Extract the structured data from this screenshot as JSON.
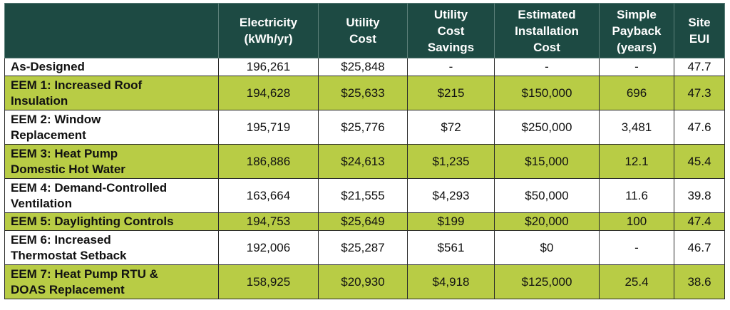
{
  "headers": [
    "",
    "Electricity\n(kWh/yr)",
    "Utility\nCost",
    "Utility\nCost\nSavings",
    "Estimated\nInstallation\nCost",
    "Simple\nPayback\n(years)",
    "Site\nEUI"
  ],
  "rows": [
    {
      "label": "As-Designed",
      "electricity": "196,261",
      "utility_cost": "$25,848",
      "savings": "-",
      "install_cost": "-",
      "payback": "-",
      "eui": "47.7",
      "style": "white"
    },
    {
      "label": "EEM 1: Increased Roof\nInsulation",
      "electricity": "194,628",
      "utility_cost": "$25,633",
      "savings": "$215",
      "install_cost": "$150,000",
      "payback": "696",
      "eui": "47.3",
      "style": "green"
    },
    {
      "label": "EEM 2: Window\nReplacement",
      "electricity": "195,719",
      "utility_cost": "$25,776",
      "savings": "$72",
      "install_cost": "$250,000",
      "payback": "3,481",
      "eui": "47.6",
      "style": "white"
    },
    {
      "label": "EEM 3: Heat Pump\nDomestic Hot Water",
      "electricity": "186,886",
      "utility_cost": "$24,613",
      "savings": "$1,235",
      "install_cost": "$15,000",
      "payback": "12.1",
      "eui": "45.4",
      "style": "green"
    },
    {
      "label": "EEM 4: Demand-Controlled\nVentilation",
      "electricity": "163,664",
      "utility_cost": "$21,555",
      "savings": "$4,293",
      "install_cost": "$50,000",
      "payback": "11.6",
      "eui": "39.8",
      "style": "white"
    },
    {
      "label": "EEM 5: Daylighting Controls",
      "electricity": "194,753",
      "utility_cost": "$25,649",
      "savings": "$199",
      "install_cost": "$20,000",
      "payback": "100",
      "eui": "47.4",
      "style": "green"
    },
    {
      "label": "EEM 6: Increased\nThermostat Setback",
      "electricity": "192,006",
      "utility_cost": "$25,287",
      "savings": "$561",
      "install_cost": "$0",
      "payback": "-",
      "eui": "46.7",
      "style": "white"
    },
    {
      "label": "EEM 7: Heat Pump RTU &\nDOAS Replacement",
      "electricity": "158,925",
      "utility_cost": "$20,930",
      "savings": "$4,918",
      "install_cost": "$125,000",
      "payback": "25.4",
      "eui": "38.6",
      "style": "green"
    }
  ],
  "colors": {
    "header_bg": "#1d4a43",
    "header_text": "#ffffff",
    "green_row": "#b8cc45",
    "white_row": "#ffffff"
  }
}
